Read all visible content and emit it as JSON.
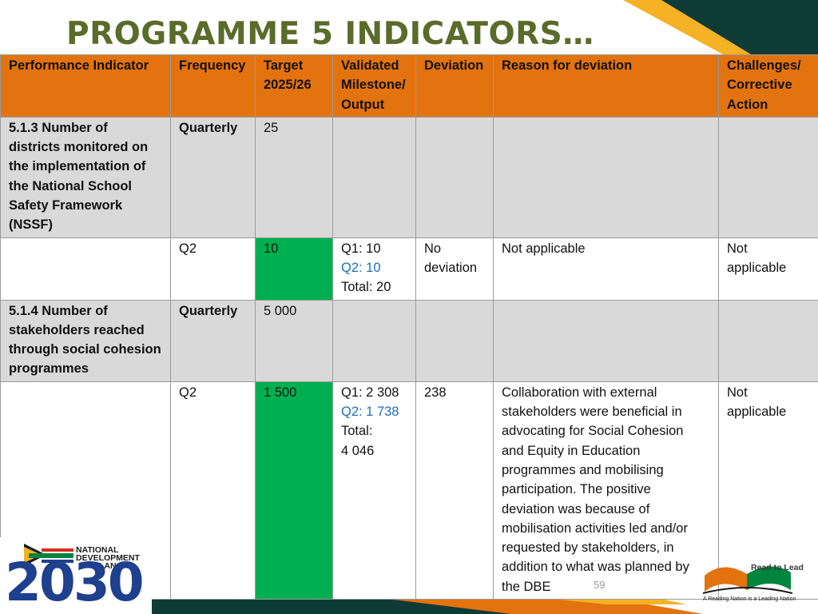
{
  "slide": {
    "title": "PROGRAMME 5 INDICATORS…",
    "page_number": "59"
  },
  "table": {
    "headers": [
      {
        "l1": "Performance Indicator",
        "l2": "",
        "l3": ""
      },
      {
        "l1": "Frequency",
        "l2": "",
        "l3": ""
      },
      {
        "l1": "Target",
        "l2": "2025/26",
        "l3": ""
      },
      {
        "l1": "Validated",
        "l2": "Milestone/",
        "l3": "Output"
      },
      {
        "l1": "Deviation",
        "l2": "",
        "l3": ""
      },
      {
        "l1": "Reason for deviation",
        "l2": "",
        "l3": ""
      },
      {
        "l1": "Challenges/",
        "l2": "Corrective",
        "l3": "Action"
      }
    ],
    "ind_513": {
      "indicator": [
        "5.1.3 Number of",
        "districts monitored on",
        "the implementation of",
        "the National School",
        "Safety Framework",
        "(NSSF)"
      ],
      "frequency": "Quarterly",
      "target": "25"
    },
    "row_513_q2": {
      "frequency": "Q2",
      "target": "10",
      "validated": {
        "q1": "Q1: 10",
        "q2": "Q2: 10",
        "total": "Total: 20"
      },
      "deviation": [
        "No",
        "deviation"
      ],
      "reason": "Not applicable",
      "challenges": [
        "Not",
        "applicable"
      ]
    },
    "ind_514": {
      "indicator": [
        "5.1.4 Number of",
        "stakeholders reached",
        "through social cohesion",
        "programmes"
      ],
      "frequency": "Quarterly",
      "target": "5 000"
    },
    "row_514_q2": {
      "frequency": "Q2",
      "target": "1 500",
      "validated": {
        "q1": "Q1: 2 308",
        "q2": "Q2: 1 738",
        "total": "Total:",
        "total_value": "4 046"
      },
      "deviation": "238",
      "reason": [
        "Collaboration with external",
        "stakeholders were beneficial in",
        "advocating for Social Cohesion",
        "and Equity in Education",
        "programmes and mobilising",
        "participation. The positive",
        "deviation was because of",
        "mobilisation activities led and/or",
        "requested by stakeholders, in",
        "addition to what was planned by",
        "the DBE"
      ],
      "challenges": [
        "Not",
        "applicable"
      ]
    }
  },
  "logos": {
    "ndp": {
      "line1": "NATIONAL",
      "line2": "DEVELOPMENT",
      "line3": "PLAN",
      "year": "2030"
    },
    "read_to_lead": {
      "title": "Read to Lead",
      "tagline": "A Reading Nation is a Leading Nation"
    }
  },
  "colors": {
    "title": "#5a6b2a",
    "header_bg": "#e3730f",
    "indicator_bg": "#d9d9d9",
    "target_highlight": "#00b050",
    "q2_text": "#1f6fb2",
    "dark_teal": "#0f3b36",
    "gold": "#f4b224"
  }
}
